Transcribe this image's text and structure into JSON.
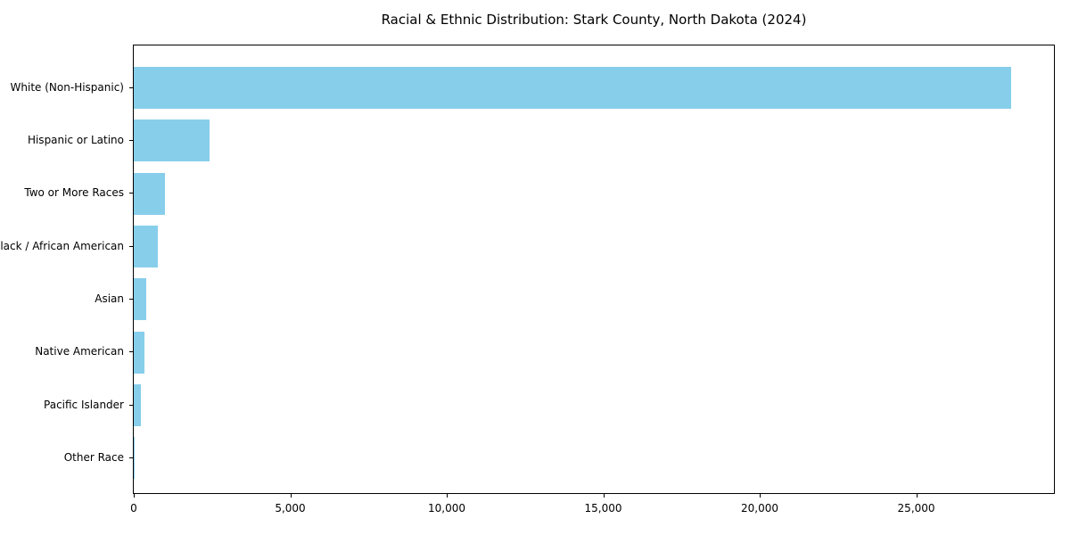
{
  "title": "Racial & Ethnic Distribution: Stark County, North Dakota (2024)",
  "chart_data": {
    "type": "bar",
    "orientation": "horizontal",
    "title": "Racial & Ethnic Distribution: Stark County, North Dakota (2024)",
    "categories": [
      "White (Non-Hispanic)",
      "Hispanic or Latino",
      "Two or More Races",
      "Black / African American",
      "Asian",
      "Native American",
      "Pacific Islander",
      "Other Race"
    ],
    "values": [
      28040,
      2415,
      1005,
      760,
      405,
      355,
      225,
      30
    ],
    "xlabel": "",
    "ylabel": "",
    "xlim": [
      0,
      29400
    ],
    "x_ticks": [
      0,
      5000,
      10000,
      15000,
      20000,
      25000
    ],
    "x_tick_labels": [
      "0",
      "5,000",
      "10,000",
      "15,000",
      "20,000",
      "25,000"
    ],
    "bar_color": "#87CEEB",
    "frame_color": "#000000",
    "text_color": "#000000",
    "grid": false,
    "legend": null
  }
}
